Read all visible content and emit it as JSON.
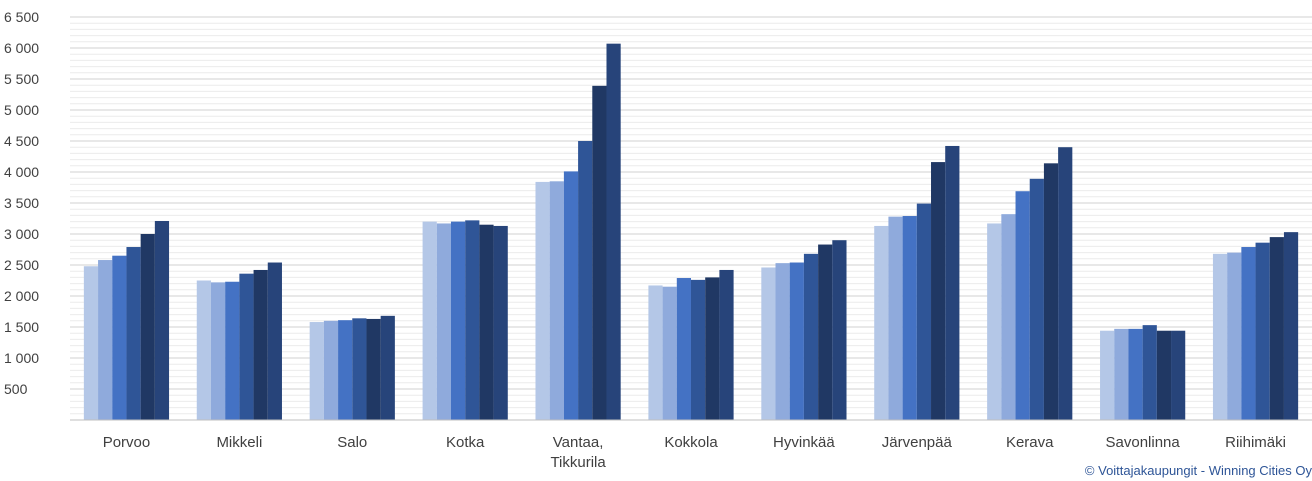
{
  "chart_data": {
    "type": "bar",
    "title": "",
    "xlabel": "",
    "ylabel": "",
    "ylim": [
      0,
      6500
    ],
    "yticks": [
      500,
      1000,
      1500,
      2000,
      2500,
      3000,
      3500,
      4000,
      4500,
      5000,
      5500,
      6000,
      6500
    ],
    "ytick_labels": [
      "500",
      "1 000",
      "1 500",
      "2 000",
      "2 500",
      "3 000",
      "3 500",
      "4 000",
      "4 500",
      "5 000",
      "5 500",
      "6 000",
      "6 500"
    ],
    "grid": true,
    "legend": "none",
    "categories": [
      [
        "Porvoo"
      ],
      [
        "Mikkeli"
      ],
      [
        "Salo"
      ],
      [
        "Kotka"
      ],
      [
        "Vantaa,",
        "Tikkurila"
      ],
      [
        "Kokkola"
      ],
      [
        "Hyvinkää"
      ],
      [
        "Järvenpää"
      ],
      [
        "Kerava"
      ],
      [
        "Savonlinna"
      ],
      [
        "Riihimäki"
      ]
    ],
    "series": [
      {
        "color": "#b4c7e7",
        "values": [
          2480,
          2250,
          1580,
          3200,
          3840,
          2170,
          2460,
          3130,
          3170,
          1440,
          2680
        ]
      },
      {
        "color": "#8faadc",
        "values": [
          2580,
          2220,
          1600,
          3170,
          3850,
          2150,
          2530,
          3280,
          3320,
          1470,
          2700
        ]
      },
      {
        "color": "#4472c4",
        "values": [
          2650,
          2230,
          1610,
          3200,
          4010,
          2290,
          2540,
          3290,
          3690,
          1470,
          2790
        ]
      },
      {
        "color": "#2f5597",
        "values": [
          2790,
          2360,
          1640,
          3220,
          4500,
          2260,
          2680,
          3490,
          3890,
          1530,
          2860
        ]
      },
      {
        "color": "#203864",
        "values": [
          3000,
          2420,
          1630,
          3150,
          5390,
          2300,
          2830,
          4160,
          4140,
          1440,
          2950
        ]
      },
      {
        "color": "#27447a",
        "values": [
          3210,
          2540,
          1680,
          3130,
          6070,
          2420,
          2900,
          4420,
          4400,
          1440,
          3030
        ]
      }
    ]
  },
  "credit": "© Voittajakaupungit - Winning Cities Oy"
}
